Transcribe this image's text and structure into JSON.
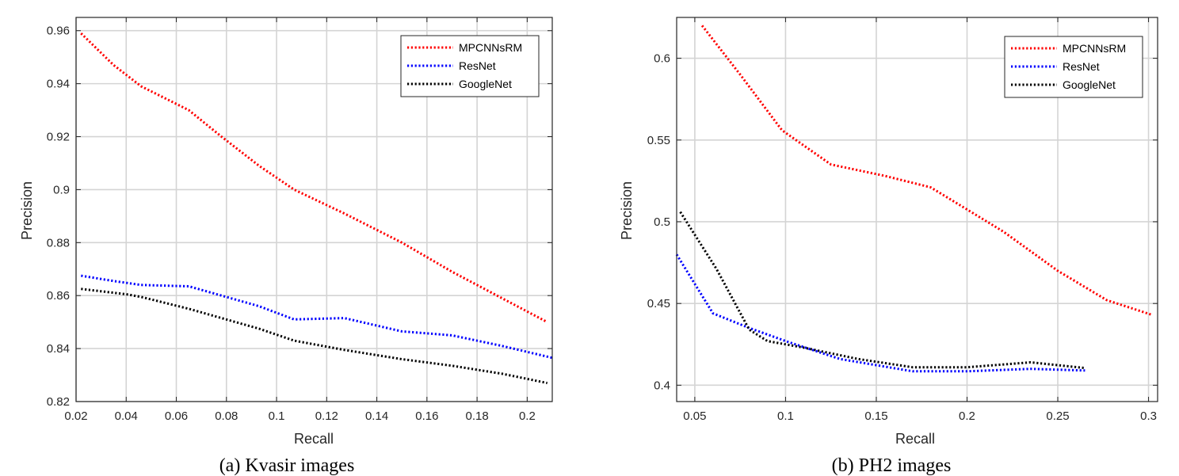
{
  "chart_data": [
    {
      "type": "line",
      "caption": "(a) Kvasir images",
      "xlabel": "Recall",
      "ylabel": "Precision",
      "xlim": [
        0.02,
        0.21
      ],
      "ylim": [
        0.82,
        0.965
      ],
      "xticks": [
        0.02,
        0.04,
        0.06,
        0.08,
        0.1,
        0.12,
        0.14,
        0.16,
        0.18,
        0.2
      ],
      "xticklabels": [
        "0.02",
        "0.04",
        "0.06",
        "0.08",
        "0.1",
        "0.12",
        "0.14",
        "0.16",
        "0.18",
        "0.2"
      ],
      "yticks": [
        0.82,
        0.84,
        0.86,
        0.88,
        0.9,
        0.92,
        0.94,
        0.96
      ],
      "yticklabels": [
        "0.82",
        "0.84",
        "0.86",
        "0.88",
        "0.9",
        "0.92",
        "0.94",
        "0.96"
      ],
      "grid": true,
      "legend_position": "top-right",
      "series": [
        {
          "name": "MPCNNsRM",
          "color": "#ff0000",
          "x": [
            0.022,
            0.035,
            0.046,
            0.065,
            0.078,
            0.093,
            0.107,
            0.127,
            0.15,
            0.17,
            0.19,
            0.208
          ],
          "y": [
            0.959,
            0.947,
            0.939,
            0.93,
            0.92,
            0.909,
            0.9,
            0.891,
            0.88,
            0.869,
            0.859,
            0.85
          ]
        },
        {
          "name": "ResNet",
          "color": "#0000ff",
          "x": [
            0.022,
            0.035,
            0.046,
            0.065,
            0.078,
            0.093,
            0.107,
            0.127,
            0.15,
            0.17,
            0.19,
            0.21
          ],
          "y": [
            0.8675,
            0.8655,
            0.864,
            0.8635,
            0.86,
            0.856,
            0.851,
            0.8515,
            0.8465,
            0.845,
            0.841,
            0.8365
          ]
        },
        {
          "name": "GoogleNet",
          "color": "#000000",
          "x": [
            0.022,
            0.04,
            0.046,
            0.065,
            0.078,
            0.093,
            0.107,
            0.127,
            0.15,
            0.17,
            0.19,
            0.208
          ],
          "y": [
            0.8625,
            0.8605,
            0.8595,
            0.855,
            0.8515,
            0.8475,
            0.843,
            0.8395,
            0.836,
            0.8335,
            0.8305,
            0.827
          ]
        }
      ]
    },
    {
      "type": "line",
      "caption": "(b) PH2 images",
      "xlabel": "Recall",
      "ylabel": "Precision",
      "xlim": [
        0.04,
        0.305
      ],
      "ylim": [
        0.39,
        0.625
      ],
      "xticks": [
        0.05,
        0.1,
        0.15,
        0.2,
        0.25,
        0.3
      ],
      "xticklabels": [
        "0.05",
        "0.1",
        "0.15",
        "0.2",
        "0.25",
        "0.3"
      ],
      "yticks": [
        0.4,
        0.45,
        0.5,
        0.55,
        0.6
      ],
      "yticklabels": [
        "0.4",
        "0.45",
        "0.5",
        "0.55",
        "0.6"
      ],
      "grid": true,
      "legend_position": "top-right",
      "series": [
        {
          "name": "MPCNNsRM",
          "color": "#ff0000",
          "x": [
            0.054,
            0.075,
            0.098,
            0.125,
            0.155,
            0.18,
            0.22,
            0.25,
            0.277,
            0.302
          ],
          "y": [
            0.62,
            0.59,
            0.556,
            0.535,
            0.528,
            0.521,
            0.494,
            0.47,
            0.452,
            0.443
          ]
        },
        {
          "name": "ResNet",
          "color": "#0000ff",
          "x": [
            0.04,
            0.06,
            0.08,
            0.1,
            0.13,
            0.17,
            0.2,
            0.235,
            0.265
          ],
          "y": [
            0.48,
            0.444,
            0.435,
            0.427,
            0.416,
            0.4085,
            0.4085,
            0.41,
            0.409
          ]
        },
        {
          "name": "GoogleNet",
          "color": "#000000",
          "x": [
            0.042,
            0.062,
            0.08,
            0.09,
            0.11,
            0.14,
            0.17,
            0.2,
            0.235,
            0.265
          ],
          "y": [
            0.506,
            0.471,
            0.434,
            0.427,
            0.423,
            0.416,
            0.411,
            0.411,
            0.414,
            0.4105
          ]
        }
      ]
    }
  ]
}
